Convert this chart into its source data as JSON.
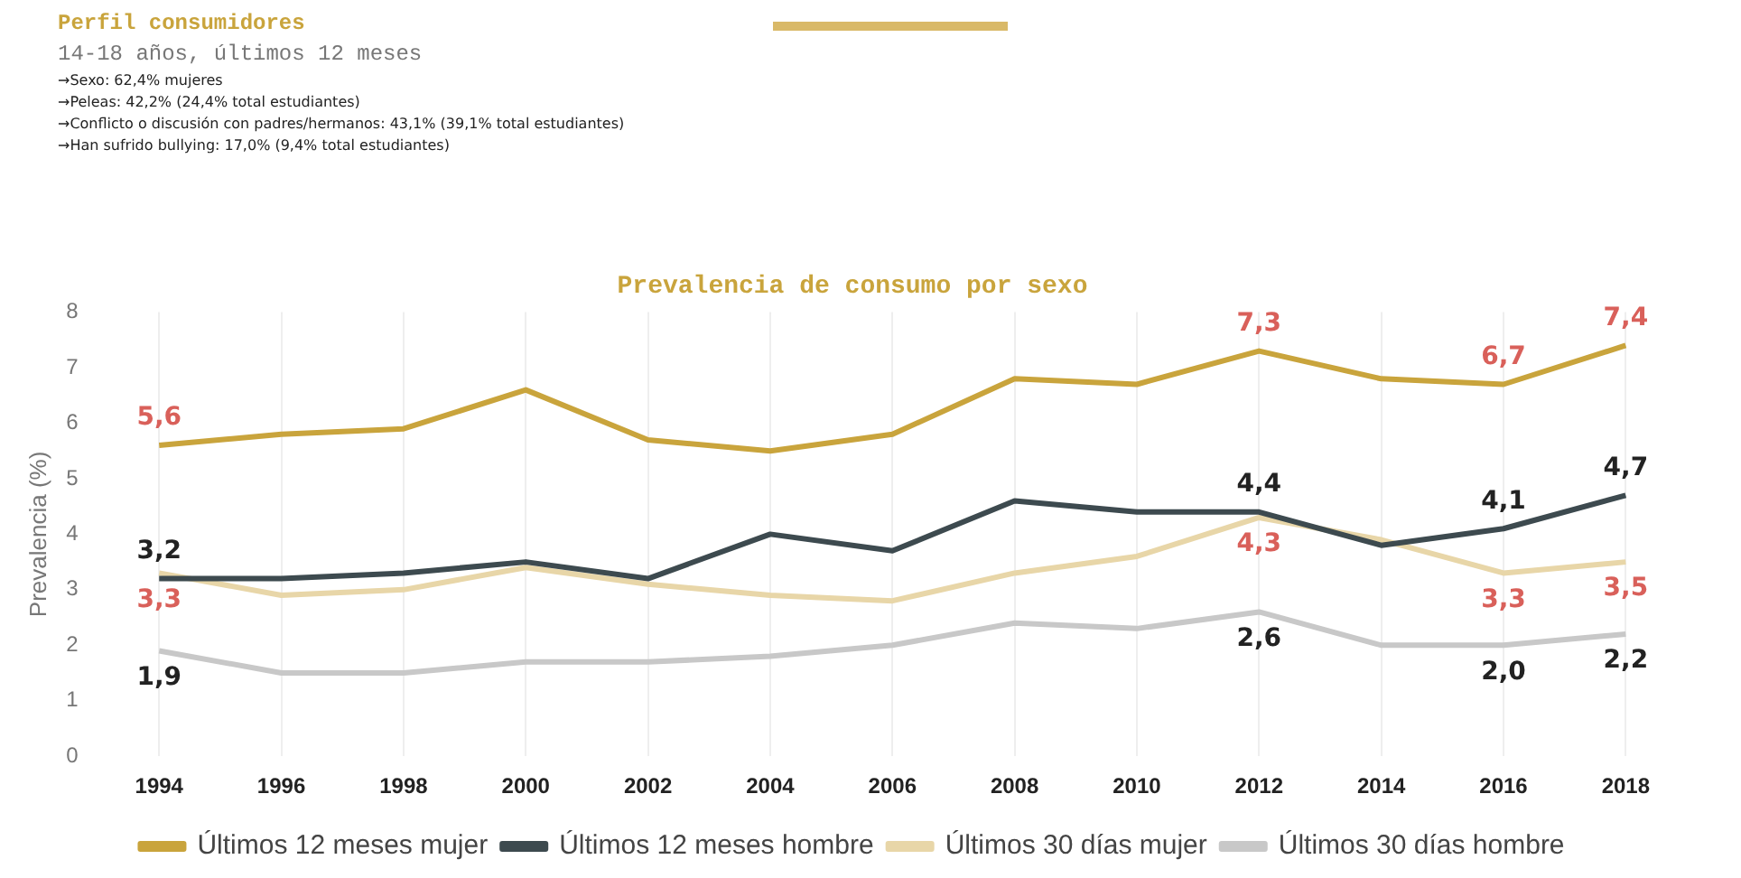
{
  "chart_data": {
    "type": "line",
    "title": "Prevalencia de consumo por sexo",
    "ylabel": "Prevalencia (%)",
    "annotations": [
      "Perfil consumidores",
      "14-18 años, últimos 12 meses",
      "→Sexo: 62,4% mujeres",
      "→Peleas: 42,2% (24,4% total estudiantes)",
      "→Conflicto o discusión con padres/hermanos: 43,1% (39,1% total estudiantes)",
      "→Han sufrido bullying: 17,0% (9,4% total estudiantes)"
    ],
    "categories": [
      "1994",
      "1996",
      "1998",
      "2000",
      "2002",
      "2004",
      "2006",
      "2008",
      "2010",
      "2012",
      "2014",
      "2016",
      "2018"
    ],
    "series": [
      {
        "name": "Últimos 12 meses mujer",
        "color": "#c9a43c",
        "values": [
          5.6,
          5.8,
          5.9,
          6.6,
          5.7,
          5.5,
          5.8,
          6.8,
          6.7,
          7.3,
          6.8,
          6.7,
          7.4
        ],
        "value_labels": [
          "5,6",
          null,
          null,
          null,
          null,
          null,
          null,
          null,
          null,
          "7,3",
          null,
          "6,7",
          "7,4"
        ]
      },
      {
        "name": "Últimos 12 meses hombre",
        "color": "#3d4a4f",
        "values": [
          3.2,
          3.2,
          3.3,
          3.5,
          3.2,
          4.0,
          3.7,
          4.6,
          4.4,
          4.4,
          3.8,
          4.1,
          4.7
        ],
        "value_labels": [
          "3,2",
          null,
          null,
          null,
          null,
          null,
          null,
          null,
          null,
          "4,4",
          null,
          "4,1",
          "4,7"
        ]
      },
      {
        "name": "Últimos 30 días mujer",
        "color": "#e8d6a8",
        "values": [
          3.3,
          2.9,
          3.0,
          3.4,
          3.1,
          2.9,
          2.8,
          3.3,
          3.6,
          4.3,
          3.9,
          3.3,
          3.5
        ],
        "value_labels": [
          "3,3",
          null,
          null,
          null,
          null,
          null,
          null,
          null,
          null,
          "4,3",
          null,
          "3,3",
          "3,5"
        ]
      },
      {
        "name": "Últimos 30 días hombre",
        "color": "#c8c8c8",
        "values": [
          1.9,
          1.5,
          1.5,
          1.7,
          1.7,
          1.8,
          2.0,
          2.4,
          2.3,
          2.6,
          2.0,
          2.0,
          2.2
        ],
        "value_labels": [
          "1,9",
          null,
          null,
          null,
          null,
          null,
          null,
          null,
          null,
          "2,6",
          null,
          "2,0",
          "2,2"
        ]
      }
    ],
    "ylim": [
      0,
      8
    ],
    "yticks": [
      0,
      1,
      2,
      3,
      4,
      5,
      6,
      7,
      8
    ],
    "grid": "x",
    "legend": "bottom",
    "marker": "none",
    "line_style": "solid"
  }
}
